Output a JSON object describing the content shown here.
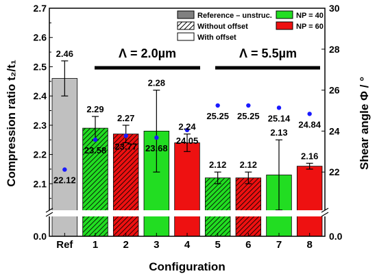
{
  "chart_data": {
    "type": "bar",
    "categories": [
      "Ref",
      "1",
      "2",
      "3",
      "4",
      "5",
      "6",
      "7",
      "8"
    ],
    "xlabel": "Configuration",
    "ylabel": "Compression ratio t₂/t₁",
    "y2label": "Shear angle Φ / °",
    "ylim_upper": [
      2.0,
      2.7
    ],
    "ylim_lower_shown": [
      0.0
    ],
    "yticks_left": [
      "0.0",
      "2.1",
      "2.2",
      "2.3",
      "2.4",
      "2.5",
      "2.6",
      "2.7"
    ],
    "y2lim": [
      20,
      30
    ],
    "yticks_right": [
      "0.0",
      "22",
      "24",
      "26",
      "28",
      "30"
    ],
    "axis_break": true,
    "series": [
      {
        "name": "Compression ratio",
        "values": [
          2.46,
          2.29,
          2.27,
          2.28,
          2.24,
          2.12,
          2.12,
          2.13,
          2.16
        ],
        "labels": [
          "2.46",
          "2.29",
          "2.27",
          "2.28",
          "2.24",
          "2.12",
          "2.12",
          "2.13",
          "2.16"
        ],
        "error_low": [
          2.4,
          2.25,
          2.24,
          2.14,
          2.21,
          2.1,
          2.1,
          2.01,
          2.15
        ],
        "error_high": [
          2.52,
          2.33,
          2.3,
          2.42,
          2.27,
          2.14,
          2.14,
          2.25,
          2.17
        ],
        "fill_colors": [
          "#c0c0c0",
          "#22dd22",
          "#ee1111",
          "#22dd22",
          "#ee1111",
          "#22dd22",
          "#ee1111",
          "#22dd22",
          "#ee1111"
        ],
        "hatched": [
          false,
          true,
          true,
          false,
          false,
          true,
          true,
          false,
          false
        ]
      },
      {
        "name": "Shear angle",
        "values": [
          22.12,
          23.58,
          23.77,
          23.68,
          24.05,
          25.25,
          25.25,
          25.14,
          24.84
        ],
        "labels": [
          "22.12",
          "23.58",
          "23.77",
          "23.68",
          "24.05",
          "25.25",
          "25.25",
          "25.14",
          "24.84"
        ],
        "color": "#1a1aff"
      }
    ],
    "legend": {
      "placement": "top-right",
      "entries": [
        {
          "label": "Reference – unstruc.",
          "fill": "#808080",
          "hatched": false
        },
        {
          "label": "Without offset",
          "fill": "#ffffff",
          "hatched": true
        },
        {
          "label": "With offset",
          "fill": "#ffffff",
          "hatched": false
        },
        {
          "label": "NP = 40",
          "fill": "#22dd22",
          "hatched": false
        },
        {
          "label": "NP = 60",
          "fill": "#ee1111",
          "hatched": false
        }
      ]
    },
    "annotations": [
      {
        "text": "Λ = 2.0µm",
        "span": [
          "1",
          "4"
        ]
      },
      {
        "text": "Λ = 5.5µm",
        "span": [
          "5",
          "8"
        ]
      }
    ]
  }
}
